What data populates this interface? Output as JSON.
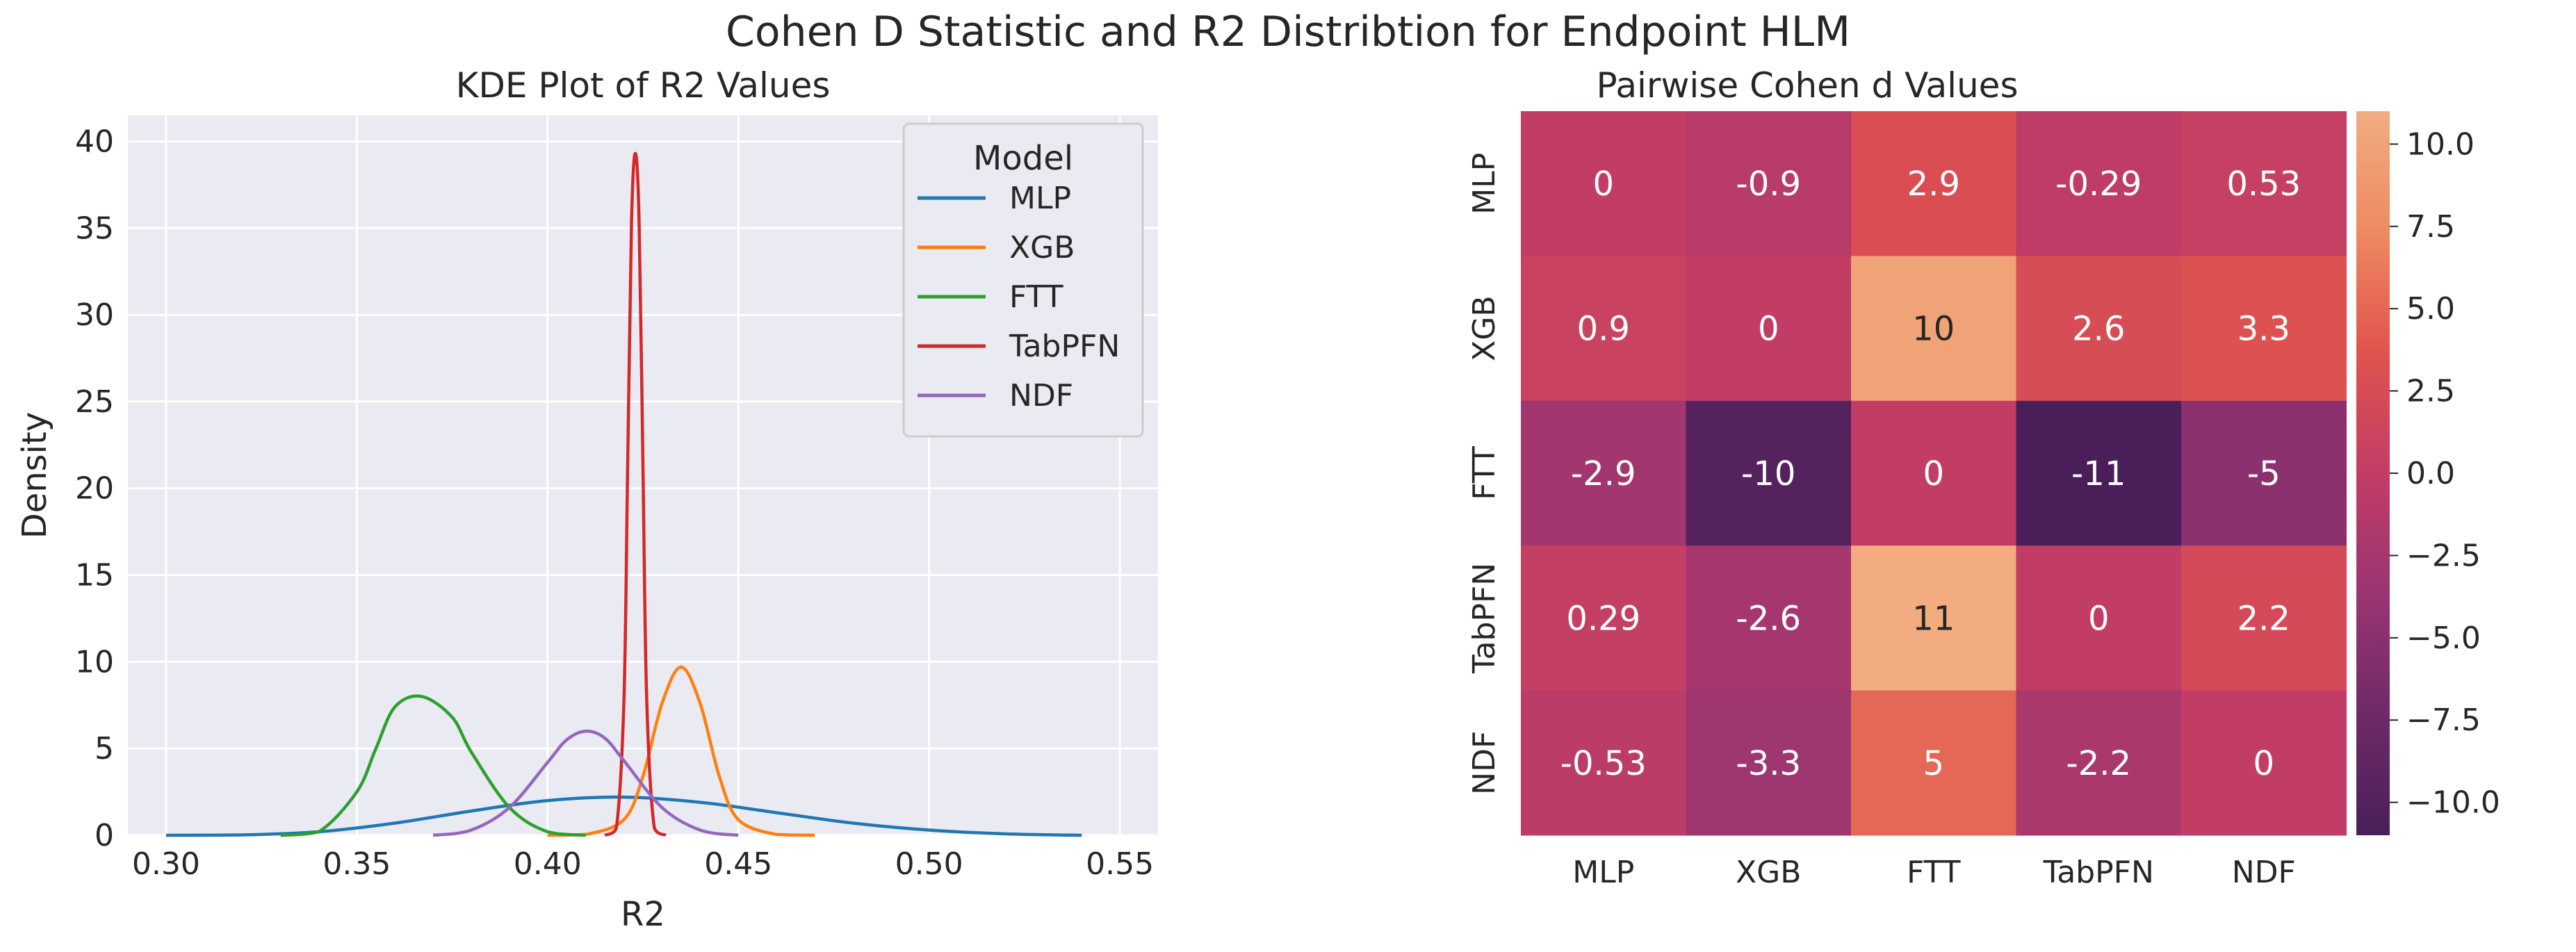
{
  "figure": {
    "suptitle": "Cohen D Statistic and R2 Distribtion for Endpoint HLM"
  },
  "chart_data": [
    {
      "type": "line",
      "title": "KDE Plot of R2 Values",
      "xlabel": "R2",
      "ylabel": "Density",
      "xlim": [
        0.29,
        0.56
      ],
      "ylim": [
        0,
        41.5
      ],
      "xticks": [
        0.3,
        0.35,
        0.4,
        0.45,
        0.5,
        0.55
      ],
      "xtick_labels": [
        "0.30",
        "0.35",
        "0.40",
        "0.45",
        "0.50",
        "0.55"
      ],
      "yticks": [
        0,
        5,
        10,
        15,
        20,
        25,
        30,
        35,
        40
      ],
      "ytick_labels": [
        "0",
        "5",
        "10",
        "15",
        "20",
        "25",
        "30",
        "35",
        "40"
      ],
      "grid": true,
      "legend": {
        "title": "Model",
        "placement": "top-right"
      },
      "series": [
        {
          "name": "MLP",
          "color": "#1f77b4",
          "x": [
            0.3,
            0.32,
            0.34,
            0.36,
            0.38,
            0.4,
            0.42,
            0.44,
            0.46,
            0.48,
            0.5,
            0.52,
            0.54
          ],
          "y": [
            0.0,
            0.02,
            0.2,
            0.7,
            1.4,
            2.0,
            2.2,
            1.9,
            1.3,
            0.7,
            0.3,
            0.08,
            0.0
          ]
        },
        {
          "name": "XGB",
          "color": "#ff7f0e",
          "x": [
            0.4,
            0.41,
            0.42,
            0.425,
            0.43,
            0.435,
            0.44,
            0.445,
            0.45,
            0.46,
            0.47
          ],
          "y": [
            0.0,
            0.05,
            0.9,
            3.4,
            7.6,
            9.7,
            7.6,
            3.4,
            0.9,
            0.05,
            0.0
          ]
        },
        {
          "name": "FTT",
          "color": "#2ca02c",
          "x": [
            0.33,
            0.34,
            0.35,
            0.355,
            0.36,
            0.367,
            0.375,
            0.38,
            0.39,
            0.4,
            0.41
          ],
          "y": [
            0.0,
            0.2,
            2.5,
            5.0,
            7.4,
            8.0,
            6.8,
            4.8,
            1.6,
            0.2,
            0.0
          ]
        },
        {
          "name": "TabPFN",
          "color": "#d62728",
          "x": [
            0.415,
            0.418,
            0.42,
            0.421,
            0.422,
            0.423,
            0.424,
            0.425,
            0.426,
            0.428,
            0.431
          ],
          "y": [
            0.0,
            0.4,
            7.7,
            21.3,
            35.3,
            39.3,
            35.3,
            21.3,
            7.7,
            0.4,
            0.0
          ]
        },
        {
          "name": "NDF",
          "color": "#9467bd",
          "x": [
            0.37,
            0.38,
            0.39,
            0.4,
            0.405,
            0.41,
            0.415,
            0.42,
            0.43,
            0.44,
            0.45
          ],
          "y": [
            0.0,
            0.3,
            1.6,
            4.2,
            5.5,
            6.0,
            5.6,
            4.3,
            1.6,
            0.3,
            0.0
          ]
        }
      ]
    },
    {
      "type": "heatmap",
      "title": "Pairwise Cohen d Values",
      "xlabel": "",
      "ylabel": "",
      "x_categories": [
        "MLP",
        "XGB",
        "FTT",
        "TabPFN",
        "NDF"
      ],
      "y_categories": [
        "MLP",
        "XGB",
        "FTT",
        "TabPFN",
        "NDF"
      ],
      "values": [
        [
          0,
          -0.9,
          2.9,
          -0.29,
          0.53
        ],
        [
          0.9,
          0,
          10,
          2.6,
          3.3
        ],
        [
          -2.9,
          -10,
          0,
          -11,
          -5
        ],
        [
          0.29,
          -2.6,
          11,
          0,
          2.2
        ],
        [
          -0.53,
          -3.3,
          5,
          -2.2,
          0
        ]
      ],
      "colorbar": {
        "range": [
          -11,
          11
        ],
        "ticks": [
          10.0,
          7.5,
          5.0,
          2.5,
          0.0,
          -2.5,
          -5.0,
          -7.5,
          -10.0
        ],
        "tick_labels": [
          "10.0",
          "7.5",
          "5.0",
          "2.5",
          "0.0",
          "−2.5",
          "−5.0",
          "−7.5",
          "−10.0"
        ],
        "colormap": "rocket-like",
        "stops": [
          "#4a1f59",
          "#6e2a68",
          "#9a3571",
          "#c23d66",
          "#e0534e",
          "#ee8a61",
          "#f2ac80"
        ]
      }
    }
  ]
}
